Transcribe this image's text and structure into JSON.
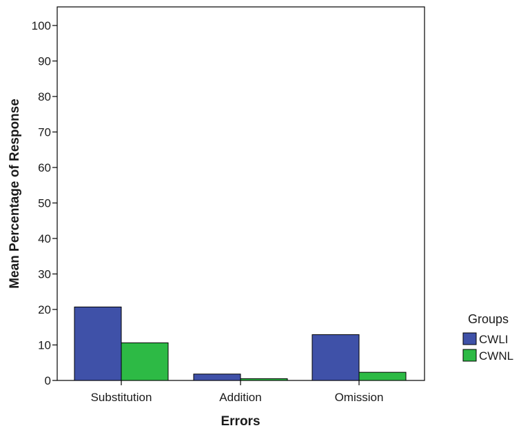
{
  "chart_data": {
    "type": "bar",
    "xlabel": "Errors",
    "ylabel": "Mean Percentage of Response",
    "ylim": [
      0,
      105
    ],
    "yticks": [
      0,
      10,
      20,
      30,
      40,
      50,
      60,
      70,
      80,
      90,
      100
    ],
    "categories": [
      "Substitution",
      "Addition",
      "Omission"
    ],
    "series": [
      {
        "name": "CWLI",
        "color": "#3f51a8",
        "values": [
          20.7,
          1.8,
          12.9
        ]
      },
      {
        "name": "CWNL",
        "color": "#2dba45",
        "values": [
          10.6,
          0.5,
          2.3
        ]
      }
    ],
    "legend": {
      "title": "Groups",
      "position": "right"
    },
    "grid": false
  }
}
